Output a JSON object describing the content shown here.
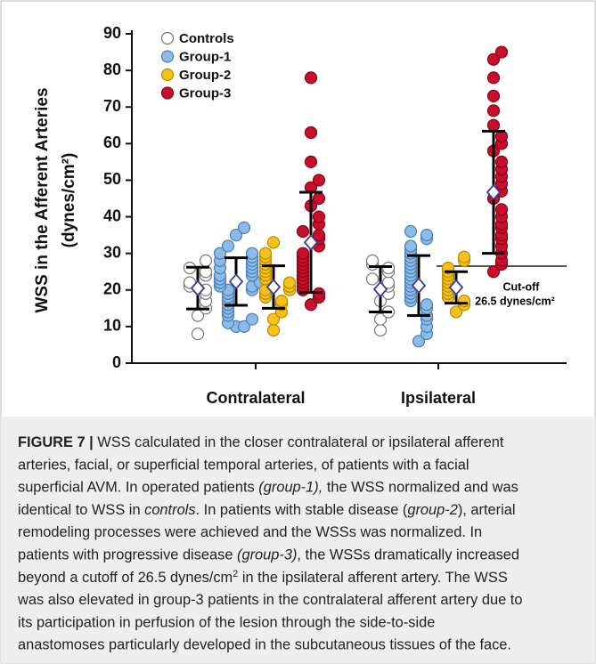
{
  "chart_data": {
    "type": "strip",
    "ylabel": [
      "WSS in the Afferent Arteries",
      "(dynes/cm²)"
    ],
    "ylim": [
      0,
      90
    ],
    "yticks": [
      0,
      10,
      20,
      30,
      40,
      50,
      60,
      70,
      80,
      90
    ],
    "categories": [
      "Contralateral",
      "Ipsilateral"
    ],
    "legend": "top-left",
    "series": [
      {
        "name": "Controls",
        "color": "#ffffff",
        "stroke": "#777777",
        "values": [
          [
            8,
            13,
            15,
            17,
            19,
            20,
            21,
            22,
            24,
            25,
            26,
            28
          ],
          [
            9,
            12,
            14,
            17,
            19,
            21,
            22,
            23,
            25,
            26,
            27,
            28
          ]
        ],
        "mean": [
          20.5,
          20.2
        ],
        "sd": [
          5.7,
          6.2
        ]
      },
      {
        "name": "Group-1",
        "color": "#8cbbe8",
        "stroke": "#4a7fb5",
        "values": [
          [
            10,
            10,
            11,
            12,
            13,
            14,
            15,
            16,
            17,
            18,
            19,
            20,
            20,
            21,
            21,
            22,
            22,
            23,
            24,
            24,
            25,
            26,
            26,
            27,
            28,
            28,
            29,
            30,
            30,
            32,
            35,
            37
          ],
          [
            6,
            8,
            10,
            12,
            13,
            15,
            16,
            17,
            18,
            19,
            20,
            21,
            22,
            23,
            24,
            25,
            26,
            27,
            28,
            29,
            30,
            31,
            32,
            34,
            35,
            36
          ]
        ],
        "mean": [
          22.3,
          21.2
        ],
        "sd": [
          6.5,
          8.2
        ]
      },
      {
        "name": "Group-2",
        "color": "#f5c21b",
        "stroke": "#b58a00",
        "values": [
          [
            9,
            12,
            14,
            16,
            17,
            18,
            19,
            20,
            20,
            21,
            22,
            23,
            24,
            25,
            26,
            27,
            28,
            29,
            30,
            33
          ],
          [
            14,
            16,
            17,
            18,
            19,
            20,
            21,
            22,
            23,
            24,
            25,
            26,
            28,
            29
          ]
        ],
        "mean": [
          20.8,
          20.7
        ],
        "sd": [
          5.8,
          4.3
        ]
      },
      {
        "name": "Group-3",
        "color": "#c8102e",
        "stroke": "#8a0010",
        "values": [
          [
            16,
            18,
            19,
            20,
            21,
            22,
            23,
            24,
            25,
            26,
            27,
            28,
            29,
            30,
            32,
            34,
            35,
            36,
            38,
            40,
            43,
            45,
            48,
            50,
            55,
            63,
            78
          ],
          [
            25,
            27,
            28,
            30,
            32,
            34,
            35,
            37,
            38,
            40,
            42,
            45,
            47,
            49,
            51,
            53,
            55,
            58,
            60,
            62,
            65,
            69,
            73,
            78,
            83,
            85
          ]
        ],
        "mean": [
          33,
          46.7
        ],
        "sd": [
          13.7,
          16.7
        ]
      }
    ],
    "cutoff": {
      "value": 26.5,
      "label": [
        "Cut-off",
        "26.5 dynes/cm²"
      ]
    }
  },
  "caption": {
    "lines": [
      [
        {
          "text": "FIGURE 7 |",
          "style": "bold"
        },
        " WSS calculated in the closer contralateral or ipsilateral afferent"
      ],
      [
        "arteries, facial, or superficial temporal arteries, of patients with a facial"
      ],
      [
        "superficial AVM. In operated patients ",
        {
          "text": "(group-1),",
          "style": "italic"
        },
        " the WSS normalized and was"
      ],
      [
        "identical to WSS in ",
        {
          "text": "controls",
          "style": "italic"
        },
        ". In patients with stable disease (",
        {
          "text": "group-2",
          "style": "italic"
        },
        "), arterial"
      ],
      [
        "remodeling processes were achieved and the WSSs was normalized. In"
      ],
      [
        "patients with progressive disease ",
        {
          "text": "(group-3)",
          "style": "italic"
        },
        ", the WSSs dramatically increased"
      ],
      [
        "beyond a cutoff of 26.5 dynes/cm",
        {
          "text": "2",
          "style": "sup"
        },
        " in the ipsilateral afferent artery. The WSS"
      ],
      [
        "was also elevated in group-3 patients in the contralateral afferent artery due to"
      ],
      [
        "its participation in perfusion of the lesion through the side-to-side"
      ],
      [
        "anastomoses particularly developed in the subcutaneous tissues of the face."
      ]
    ]
  }
}
